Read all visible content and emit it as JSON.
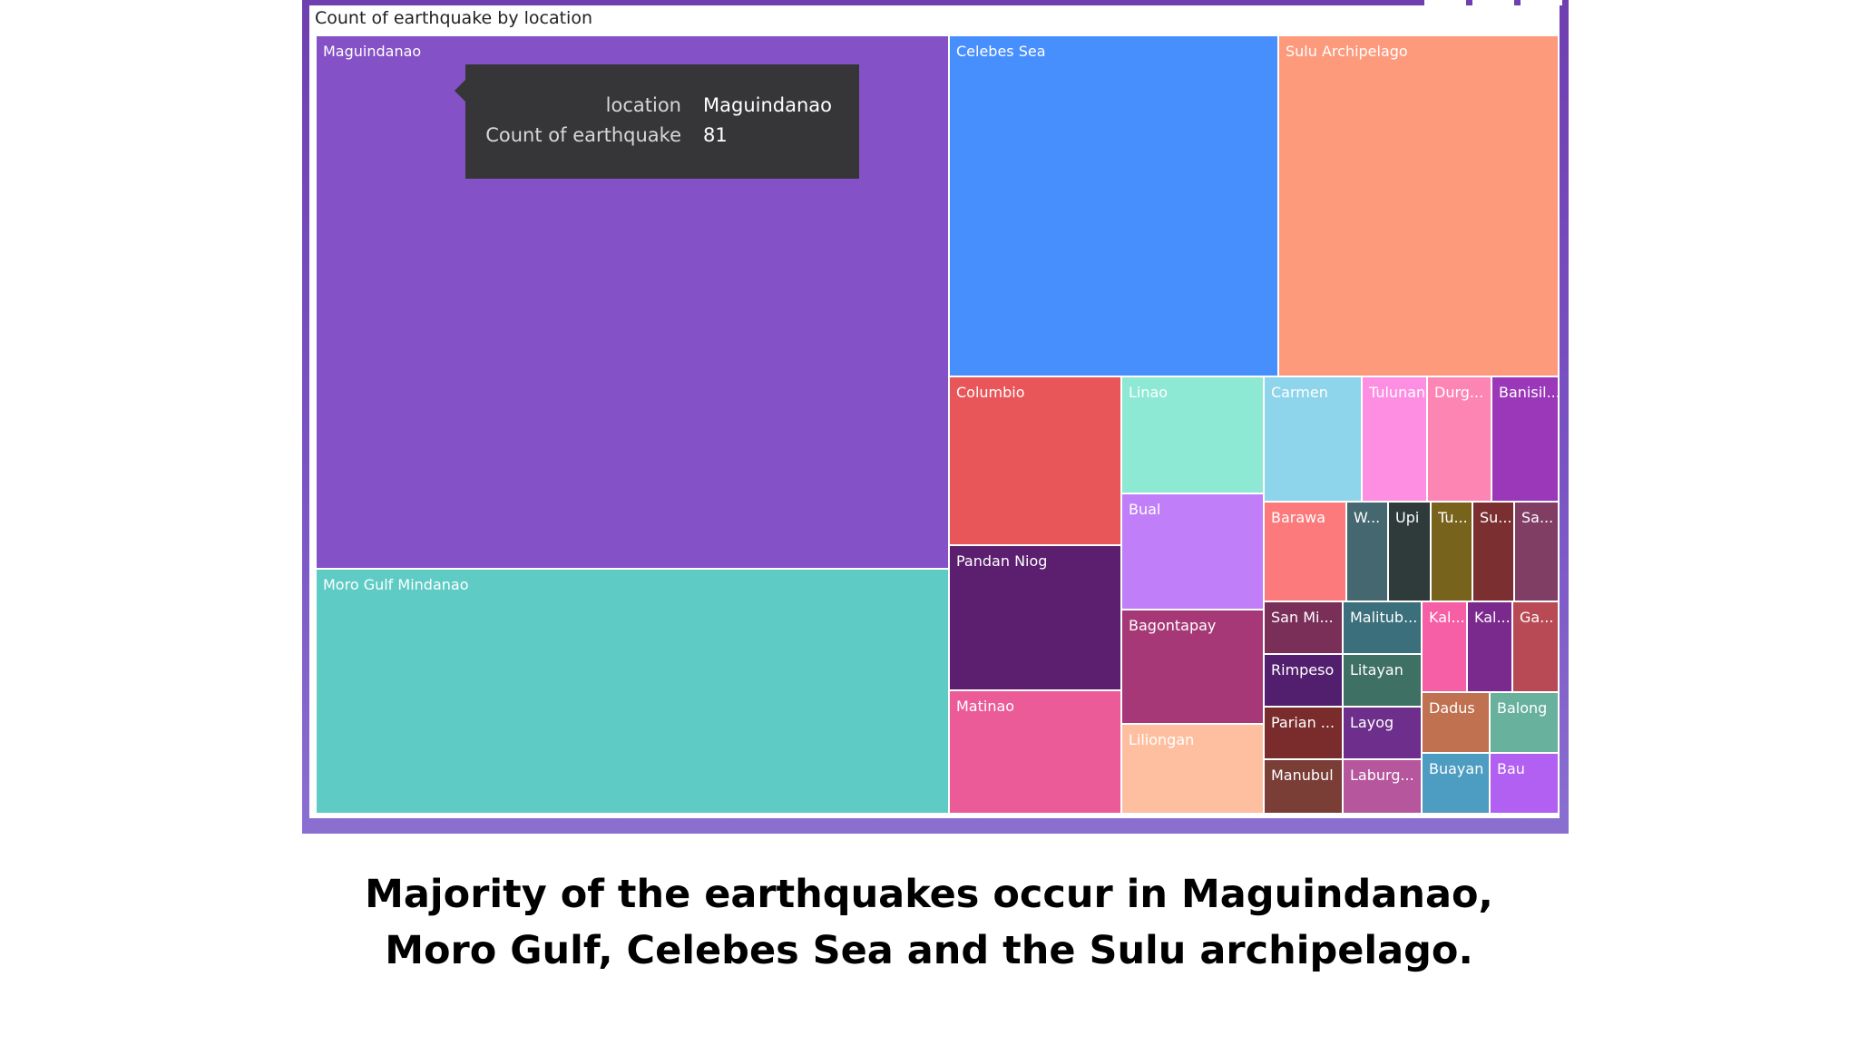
{
  "chart_data": {
    "type": "treemap",
    "title": "Count of earthquake by location",
    "items": [
      {
        "name": "Maguindanao",
        "label": "Maguindanao",
        "value": 81,
        "color": "#8451c6"
      },
      {
        "name": "Moro Gulf Mindanao",
        "label": "Moro Gulf Mindanao",
        "color": "#5ecbc5"
      },
      {
        "name": "Celebes Sea",
        "label": "Celebes Sea",
        "color": "#488ffe"
      },
      {
        "name": "Sulu Archipelago",
        "label": "Sulu Archipelago",
        "color": "#fd9a7c"
      },
      {
        "name": "Columbio",
        "label": "Columbio",
        "color": "#e95659"
      },
      {
        "name": "Pandan Niog",
        "label": "Pandan Niog",
        "color": "#5c1f6f"
      },
      {
        "name": "Matinao",
        "label": "Matinao",
        "color": "#ea5b98"
      },
      {
        "name": "Linao",
        "label": "Linao",
        "color": "#8de9d4"
      },
      {
        "name": "Bual",
        "label": "Bual",
        "color": "#c07ff8"
      },
      {
        "name": "Bagontapay",
        "label": "Bagontapay",
        "color": "#a63877"
      },
      {
        "name": "Liliongan",
        "label": "Liliongan",
        "color": "#febfa0"
      },
      {
        "name": "Carmen",
        "label": "Carmen",
        "color": "#8ed4ea"
      },
      {
        "name": "Tulunan",
        "label": "Tulunan",
        "color": "#fd8ee1"
      },
      {
        "name": "Durg...",
        "label": "Durg...",
        "color": "#fd85b3"
      },
      {
        "name": "Banisil...",
        "label": "Banisil...",
        "color": "#9b38b9"
      },
      {
        "name": "Barawa",
        "label": "Barawa",
        "color": "#fc7a7b"
      },
      {
        "name": "W...",
        "label": "W...",
        "color": "#45676f"
      },
      {
        "name": "Upi",
        "label": "Upi",
        "color": "#2f3b3b"
      },
      {
        "name": "Tu...",
        "label": "Tu...",
        "color": "#77631c"
      },
      {
        "name": "Su...",
        "label": "Su...",
        "color": "#7c2f31"
      },
      {
        "name": "Sa...",
        "label": "Sa...",
        "color": "#813e65"
      },
      {
        "name": "San Mi...",
        "label": "San Mi...",
        "color": "#7a2f59"
      },
      {
        "name": "Rimpeso",
        "label": "Rimpeso",
        "color": "#511f6d"
      },
      {
        "name": "Parian ...",
        "label": "Parian ...",
        "color": "#7a2c2c"
      },
      {
        "name": "Manubul",
        "label": "Manubul",
        "color": "#7a3e37"
      },
      {
        "name": "Malitub...",
        "label": "Malitub...",
        "color": "#3a6f7b"
      },
      {
        "name": "Litayan",
        "label": "Litayan",
        "color": "#3e7063"
      },
      {
        "name": "Layog",
        "label": "Layog",
        "color": "#6e2f8c"
      },
      {
        "name": "Laburg...",
        "label": "Laburg...",
        "color": "#b6569d"
      },
      {
        "name": "Kal...",
        "label": "Kal...",
        "color": "#f65fa6"
      },
      {
        "name": "Kal...",
        "label": "Kal...",
        "color": "#7a2a8d"
      },
      {
        "name": "Ga...",
        "label": "Ga...",
        "color": "#b84a55"
      },
      {
        "name": "Dadus",
        "label": "Dadus",
        "color": "#c0714f"
      },
      {
        "name": "Balong",
        "label": "Balong",
        "color": "#67b19d"
      },
      {
        "name": "Buayan",
        "label": "Buayan",
        "color": "#4d9cc1"
      },
      {
        "name": "Bau",
        "label": "Bau",
        "color": "#b160f1"
      }
    ],
    "tooltip": {
      "field_label_1": "location",
      "field_value_1": "Maguindanao",
      "field_label_2": "Count of earthquake",
      "field_value_2": "81"
    }
  },
  "caption": {
    "line1": "Majority of the earthquakes occur in Maguindanao,",
    "line2": "Moro Gulf, Celebes Sea and the Sulu archipelago."
  }
}
